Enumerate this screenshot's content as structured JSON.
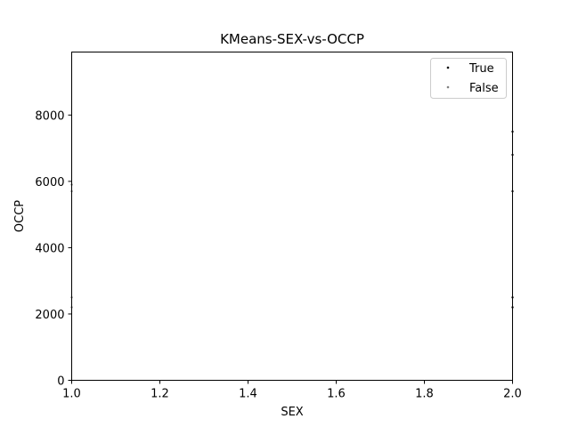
{
  "chart_data": {
    "type": "scatter",
    "title": "KMeans-SEX-vs-OCCP",
    "xlabel": "SEX",
    "ylabel": "OCCP",
    "xlim": [
      1.0,
      2.0
    ],
    "ylim": [
      0,
      9900
    ],
    "xticks": [
      "1.0",
      "1.2",
      "1.4",
      "1.6",
      "1.8",
      "2.0"
    ],
    "xtick_values": [
      1.0,
      1.2,
      1.4,
      1.6,
      1.8,
      2.0
    ],
    "yticks": [
      "0",
      "2000",
      "4000",
      "6000",
      "8000"
    ],
    "ytick_values": [
      0,
      2000,
      4000,
      6000,
      8000
    ],
    "grid": false,
    "legend_position": "top-right",
    "series": [
      {
        "name": "True",
        "color": "#000000",
        "points": [
          {
            "x": 2.0,
            "y": 2200
          },
          {
            "x": 2.0,
            "y": 2500
          },
          {
            "x": 2.0,
            "y": 5700
          },
          {
            "x": 2.0,
            "y": 6800
          },
          {
            "x": 2.0,
            "y": 7500
          }
        ]
      },
      {
        "name": "False",
        "color": "#808080",
        "points": [
          {
            "x": 1.0,
            "y": 2200
          },
          {
            "x": 1.0,
            "y": 2500
          },
          {
            "x": 1.0,
            "y": 5700
          },
          {
            "x": 1.0,
            "y": 5900
          }
        ]
      }
    ]
  }
}
